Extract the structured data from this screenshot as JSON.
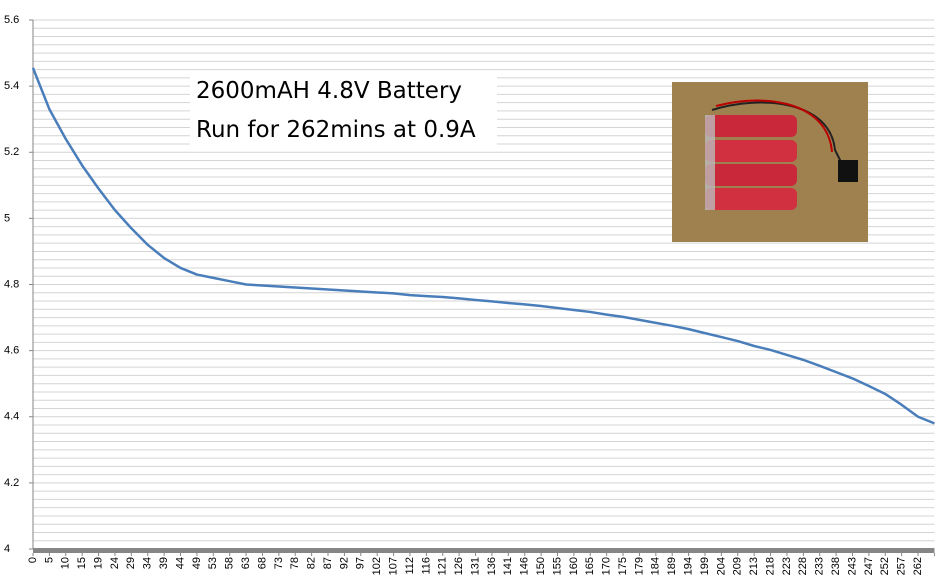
{
  "chart_data": {
    "type": "line",
    "annotation": [
      "2600mAH 4.8V Battery",
      "Run for 262mins at 0.9A"
    ],
    "categories": [
      "0",
      "5",
      "10",
      "15",
      "19",
      "24",
      "29",
      "34",
      "39",
      "44",
      "49",
      "53",
      "58",
      "63",
      "68",
      "73",
      "78",
      "82",
      "87",
      "92",
      "97",
      "102",
      "107",
      "112",
      "116",
      "121",
      "126",
      "131",
      "136",
      "141",
      "146",
      "150",
      "155",
      "160",
      "165",
      "170",
      "175",
      "179",
      "184",
      "189",
      "194",
      "199",
      "204",
      "209",
      "213",
      "218",
      "223",
      "228",
      "233",
      "238",
      "243",
      "247",
      "252",
      "257",
      "262",
      null
    ],
    "series": [
      {
        "color": "#4a7ebb",
        "values": [
          5.455,
          5.33,
          5.24,
          5.16,
          5.09,
          5.025,
          4.97,
          4.92,
          4.88,
          4.85,
          4.83,
          4.82,
          4.81,
          4.8,
          4.797,
          4.794,
          4.791,
          4.788,
          4.785,
          4.782,
          4.779,
          4.776,
          4.773,
          4.768,
          4.765,
          4.762,
          4.758,
          4.753,
          4.749,
          4.744,
          4.74,
          4.735,
          4.729,
          4.723,
          4.717,
          4.709,
          4.702,
          4.693,
          4.684,
          4.675,
          4.665,
          4.653,
          4.641,
          4.629,
          4.614,
          4.602,
          4.587,
          4.572,
          4.554,
          4.535,
          4.516,
          4.493,
          4.469,
          4.436,
          4.4,
          4.38
        ]
      }
    ],
    "ylim": [
      4,
      5.6
    ],
    "yticks": [
      4,
      4.2,
      4.4,
      4.6,
      4.8,
      5,
      5.2,
      5.4,
      5.6
    ],
    "grid": true,
    "grid_step": 0.025
  }
}
